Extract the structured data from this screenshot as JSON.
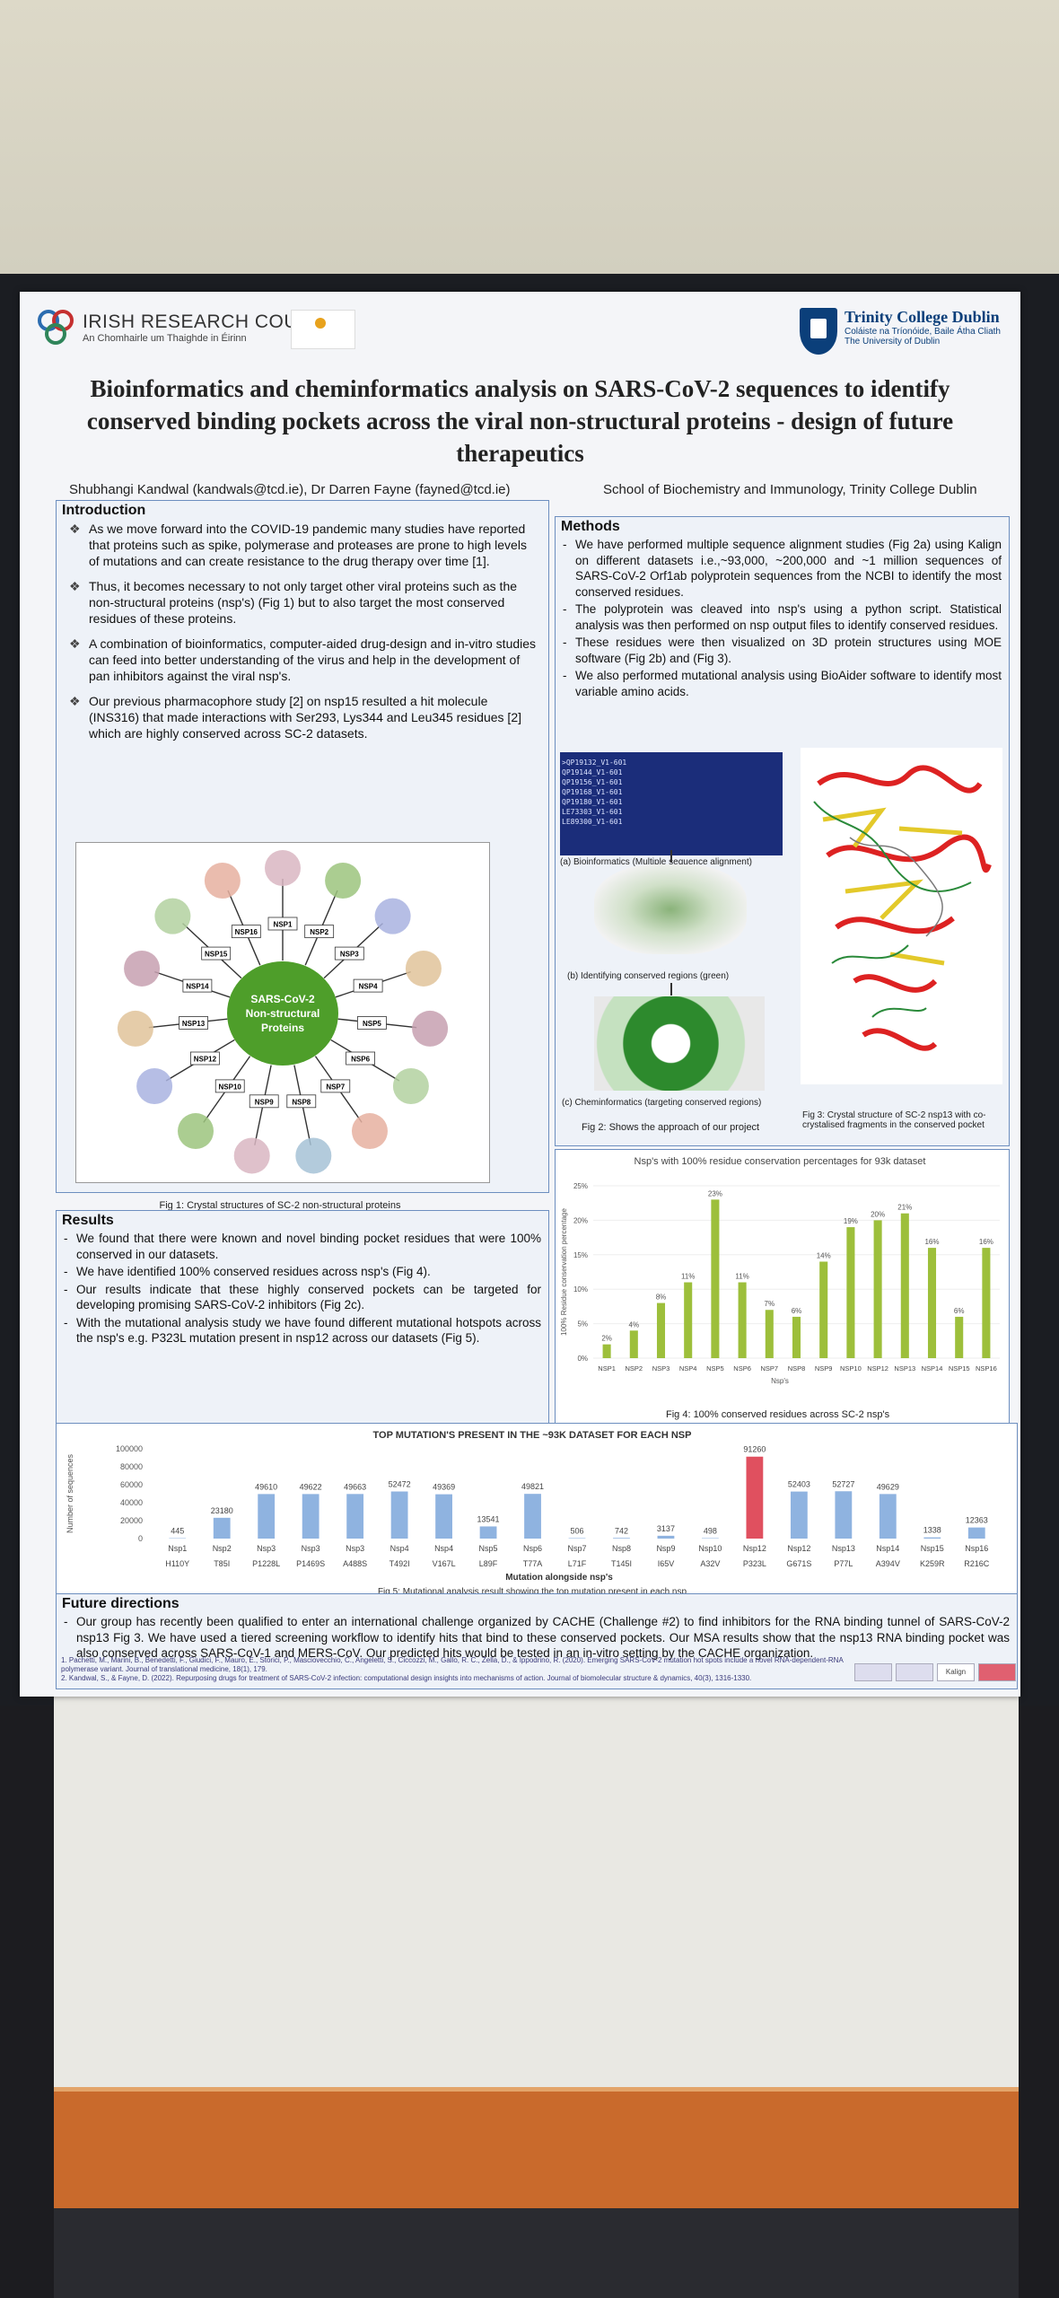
{
  "poster": {
    "logo_irc_line1": "IRISH RESEARCH COUNCIL",
    "logo_irc_line2": "An Chomhairle um Thaighde in Éirinn",
    "logo_tcd_line1": "Trinity College Dublin",
    "logo_tcd_line2": "Coláiste na Tríonóide, Baile Átha Cliath",
    "logo_tcd_line3": "The University of Dublin",
    "title": "Bioinformatics and cheminformatics analysis on SARS-CoV-2 sequences to identify conserved binding pockets across the viral non-structural proteins - design of future therapeutics",
    "authors": "Shubhangi Kandwal (kandwals@tcd.ie), Dr Darren Fayne (fayned@tcd.ie)",
    "department": "School of Biochemistry and Immunology, Trinity College Dublin"
  },
  "introduction": {
    "heading": "Introduction",
    "bullets": [
      "As we move forward into the COVID-19 pandemic many studies have reported that proteins such as spike, polymerase and proteases are prone to high levels of mutations and can create resistance to the drug therapy over time [1].",
      "Thus, it becomes necessary to not only target other viral proteins such as the non-structural proteins (nsp's) (Fig 1) but to also target the most conserved residues of these proteins.",
      "A combination of bioinformatics, computer-aided drug-design and in-vitro studies can feed into better understanding of the virus and help in the development of pan inhibitors against the viral nsp's.",
      "Our previous pharmacophore study [2] on nsp15 resulted a hit molecule (INS316) that made interactions with Ser293, Lys344 and Leu345 residues [2] which are highly conserved across SC-2 datasets."
    ],
    "fig1_center": "SARS-CoV-2 Non-structural Proteins",
    "fig1_labels": [
      "NSP1",
      "NSP2",
      "NSP3",
      "NSP4",
      "NSP5",
      "NSP6",
      "NSP7",
      "NSP8",
      "NSP9",
      "NSP10",
      "NSP12",
      "NSP13",
      "NSP14",
      "NSP15",
      "NSP16"
    ],
    "fig1_caption": "Fig 1: Crystal structures of SC-2 non-structural proteins"
  },
  "methods": {
    "heading": "Methods",
    "bullets": [
      "We have performed multiple sequence alignment studies (Fig 2a) using Kalign on different datasets i.e.,~93,000, ~200,000 and ~1 million sequences of SARS-CoV-2 Orf1ab polyprotein sequences from the NCBI to identify the most conserved residues.",
      "The polyprotein was cleaved into nsp's using a python script. Statistical analysis was then performed on nsp output files to identify conserved residues.",
      "These residues were then visualized on 3D protein structures using MOE software (Fig 2b) and (Fig 3).",
      "We also performed mutational analysis using BioAider software to identify most variable amino acids."
    ],
    "seq_rows": [
      ">QP19132_V1-601",
      "QP19144_V1-601",
      "QP19156_V1-601",
      "QP19168_V1-601",
      "QP19180_V1-601",
      "LE73303_V1-601",
      "LE89300_V1-601"
    ],
    "fig2a_caption": "(a) Bioinformatics (Multiple sequence alignment)",
    "fig2b_caption": "(b) Identifying conserved regions (green)",
    "fig2c_caption": "(c) Cheminformatics (targeting conserved regions)",
    "fig2_caption": "Fig 2: Shows the approach of our project",
    "fig3_caption": "Fig 3: Crystal structure of SC-2 nsp13 with co-crystalised fragments in the conserved pocket"
  },
  "results": {
    "heading": "Results",
    "bullets": [
      "We found that there were known and novel binding pocket residues that were 100% conserved in our datasets.",
      "We have identified 100% conserved residues across nsp's (Fig 4).",
      "Our results indicate that these highly conserved pockets can be targeted for developing promising SARS-CoV-2 inhibitors (Fig 2c).",
      "With the mutational analysis study we have found different mutational hotspots across the nsp's e.g. P323L mutation present in nsp12 across our datasets (Fig 5)."
    ]
  },
  "future": {
    "heading": "Future directions",
    "text": "Our group has recently been qualified to enter an international challenge organized by CACHE (Challenge #2) to find inhibitors for the RNA binding tunnel of SARS-CoV-2 nsp13 Fig 3. We have used a tiered screening workflow to identify hits that bind to these conserved pockets. Our MSA results show that the nsp13 RNA binding pocket was also conserved across SARS-CoV-1 and MERS-CoV. Our predicted hits would be tested in an in-vitro setting by the CACHE organization.",
    "refs": [
      "1. Pachetti, M., Marini, B., Benedetti, F., Giudici, F., Mauro, E., Storici, P., Masciovecchio, C., Angeletti, S., Ciccozzi, M., Gallo, R. C., Zella, D., & Ippodrino, R. (2020). Emerging SARS-CoV-2 mutation hot spots include a novel RNA-dependent-RNA polymerase variant. Journal of translational medicine, 18(1), 179.",
      "2. Kandwal, S., & Fayne, D. (2022). Repurposing drugs for treatment of SARS-CoV-2 infection: computational design insights into mechanisms of action. Journal of biomolecular structure & dynamics, 40(3), 1316-1330."
    ],
    "ref_logos": [
      "Kalign"
    ]
  },
  "colors": {
    "bar_green": "#9dbf3b",
    "bar_blue": "#8fb3e0",
    "bar_red": "#e0505f",
    "box_border": "#6c8ebf"
  },
  "chart_data": [
    {
      "type": "bar",
      "title": "Nsp's with 100% residue conservation percentages for 93k dataset",
      "ylabel": "100% Residue conservation percentage",
      "xlabel": "Nsp's",
      "ylim": [
        0,
        25
      ],
      "yticks": [
        "0%",
        "5%",
        "10%",
        "15%",
        "20%",
        "25%"
      ],
      "categories": [
        "NSP1",
        "NSP2",
        "NSP3",
        "NSP4",
        "NSP5",
        "NSP6",
        "NSP7",
        "NSP8",
        "NSP9",
        "NSP10",
        "NSP12",
        "NSP13",
        "NSP14",
        "NSP15",
        "NSP16"
      ],
      "values": [
        2,
        4,
        8,
        11,
        23,
        11,
        7,
        6,
        14,
        19,
        20,
        21,
        16,
        6,
        16
      ],
      "labels": [
        "2%",
        "4%",
        "8%",
        "11%",
        "23%",
        "11%",
        "7%",
        "6%",
        "14%",
        "19%",
        "20%",
        "21%",
        "16%",
        "6%",
        "16%"
      ],
      "caption": "Fig 4: 100% conserved residues across SC-2 nsp's"
    },
    {
      "type": "bar",
      "title": "TOP MUTATION'S PRESENT IN THE ~93K DATASET FOR EACH NSP",
      "ylabel": "Number of sequences",
      "xlabel": "Mutation alongside nsp's",
      "ylim": [
        0,
        100000
      ],
      "yticks": [
        "0",
        "20000",
        "40000",
        "60000",
        "80000",
        "100000"
      ],
      "categories": [
        "Nsp1",
        "Nsp2",
        "Nsp3",
        "Nsp3",
        "Nsp3",
        "Nsp4",
        "Nsp4",
        "Nsp5",
        "Nsp6",
        "Nsp7",
        "Nsp8",
        "Nsp9",
        "Nsp10",
        "Nsp12",
        "Nsp12",
        "Nsp13",
        "Nsp14",
        "Nsp15",
        "Nsp16"
      ],
      "mutations": [
        "H110Y",
        "T85I",
        "P1228L",
        "P1469S",
        "A488S",
        "T492I",
        "V167L",
        "L89F",
        "T77A",
        "L71F",
        "T145I",
        "I65V",
        "A32V",
        "P323L",
        "G671S",
        "P77L",
        "A394V",
        "K259R",
        "R216C"
      ],
      "values": [
        445,
        23180,
        49610,
        49622,
        49663,
        52472,
        49369,
        13541,
        49821,
        506,
        742,
        3137,
        498,
        91260,
        52403,
        52727,
        49629,
        1338,
        12363
      ],
      "labels": [
        "445",
        "23180",
        "49610",
        "49622",
        "49663",
        "52472",
        "49369",
        "13541",
        "49821",
        "506",
        "742",
        "3137",
        "498",
        "91260",
        "52403",
        "52727",
        "49629",
        "1338",
        "12363"
      ],
      "highlight_index": 13,
      "caption": "Fig 5: Mutational analysis result showing the top mutation present in each nsp"
    }
  ]
}
